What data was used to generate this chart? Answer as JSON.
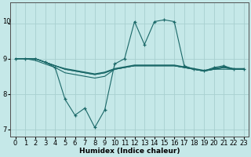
{
  "xlabel": "Humidex (Indice chaleur)",
  "bg_color": "#c5e8e8",
  "grid_color": "#a8d0d0",
  "line_color": "#1a6868",
  "x_values": [
    0,
    1,
    2,
    3,
    4,
    5,
    6,
    7,
    8,
    9,
    10,
    11,
    12,
    13,
    14,
    15,
    16,
    17,
    18,
    19,
    20,
    21,
    22,
    23
  ],
  "series": [
    [
      9.0,
      9.0,
      9.0,
      8.9,
      8.75,
      7.85,
      7.4,
      7.6,
      7.05,
      7.55,
      8.85,
      9.0,
      10.05,
      9.4,
      10.05,
      10.1,
      10.05,
      8.8,
      8.7,
      8.65,
      8.75,
      8.8,
      8.7,
      8.7
    ],
    [
      9.0,
      9.0,
      8.95,
      8.85,
      8.75,
      8.6,
      8.55,
      8.5,
      8.45,
      8.5,
      8.7,
      8.75,
      8.8,
      8.8,
      8.8,
      8.8,
      8.8,
      8.75,
      8.7,
      8.65,
      8.7,
      8.7,
      8.7,
      8.7
    ],
    [
      9.0,
      9.0,
      9.0,
      8.9,
      8.8,
      8.7,
      8.65,
      8.6,
      8.55,
      8.6,
      8.7,
      8.75,
      8.8,
      8.8,
      8.8,
      8.8,
      8.8,
      8.75,
      8.7,
      8.65,
      8.7,
      8.75,
      8.7,
      8.7
    ],
    [
      9.0,
      9.0,
      9.0,
      8.9,
      8.8,
      8.7,
      8.65,
      8.6,
      8.55,
      8.6,
      8.7,
      8.75,
      8.8,
      8.8,
      8.8,
      8.8,
      8.8,
      8.75,
      8.7,
      8.65,
      8.7,
      8.75,
      8.7,
      8.7
    ],
    [
      9.0,
      9.0,
      9.0,
      8.9,
      8.8,
      8.72,
      8.67,
      8.62,
      8.57,
      8.62,
      8.72,
      8.77,
      8.82,
      8.82,
      8.82,
      8.82,
      8.82,
      8.77,
      8.72,
      8.67,
      8.72,
      8.77,
      8.72,
      8.72
    ]
  ],
  "ylim": [
    6.8,
    10.6
  ],
  "yticks": [
    7,
    8,
    9,
    10
  ],
  "ytick_labels": [
    "7",
    "8",
    "9",
    ""
  ],
  "top_label": "10",
  "xticks": [
    0,
    1,
    2,
    3,
    4,
    5,
    6,
    7,
    8,
    9,
    10,
    11,
    12,
    13,
    14,
    15,
    16,
    17,
    18,
    19,
    20,
    21,
    22,
    23
  ],
  "marker": "+",
  "markersize": 3,
  "linewidth": 0.8,
  "label_fontsize": 6.5,
  "tick_fontsize": 6
}
